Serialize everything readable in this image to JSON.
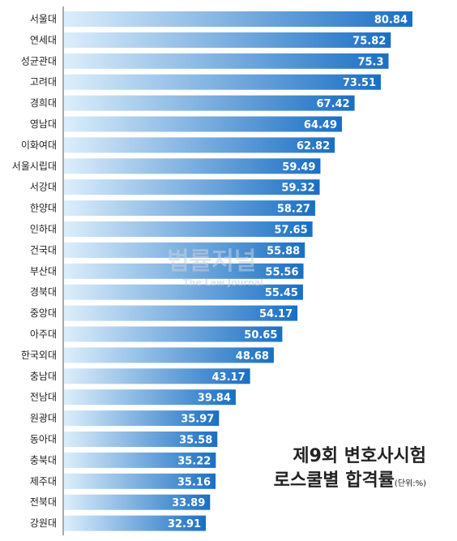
{
  "chart_data": {
    "type": "bar",
    "orientation": "horizontal",
    "categories": [
      "서울대",
      "연세대",
      "성균관대",
      "고려대",
      "경희대",
      "영남대",
      "이화여대",
      "서울시립대",
      "서강대",
      "한양대",
      "인하대",
      "건국대",
      "부산대",
      "경북대",
      "중앙대",
      "아주대",
      "한국외대",
      "충남대",
      "전남대",
      "원광대",
      "동아대",
      "충북대",
      "제주대",
      "전북대",
      "강원대"
    ],
    "values": [
      80.84,
      75.82,
      75.3,
      73.51,
      67.42,
      64.49,
      62.82,
      59.49,
      59.32,
      58.27,
      57.65,
      55.88,
      55.56,
      55.45,
      54.17,
      50.65,
      48.68,
      43.17,
      39.84,
      35.97,
      35.58,
      35.22,
      35.16,
      33.89,
      32.91
    ],
    "value_labels": [
      "80.84",
      "75.82",
      "75.3",
      "73.51",
      "67.42",
      "64.49",
      "62.82",
      "59.49",
      "59.32",
      "58.27",
      "57.65",
      "55.88",
      "55.56",
      "55.45",
      "54.17",
      "50.65",
      "48.68",
      "43.17",
      "39.84",
      "35.97",
      "35.58",
      "35.22",
      "35.16",
      "33.89",
      "32.91"
    ],
    "title_line1": "제9회 변호사시험",
    "title_line2": "로스쿨별 합격률",
    "unit": "(단위:%)",
    "xlim": [
      0,
      80.84
    ],
    "grid": false,
    "legend": "none",
    "bar_color_start": "#dceefb",
    "bar_color_end": "#1a6fc4",
    "axis_color": "#555555"
  },
  "watermark": {
    "main": "법률저널",
    "sub": "The Law Journal"
  }
}
